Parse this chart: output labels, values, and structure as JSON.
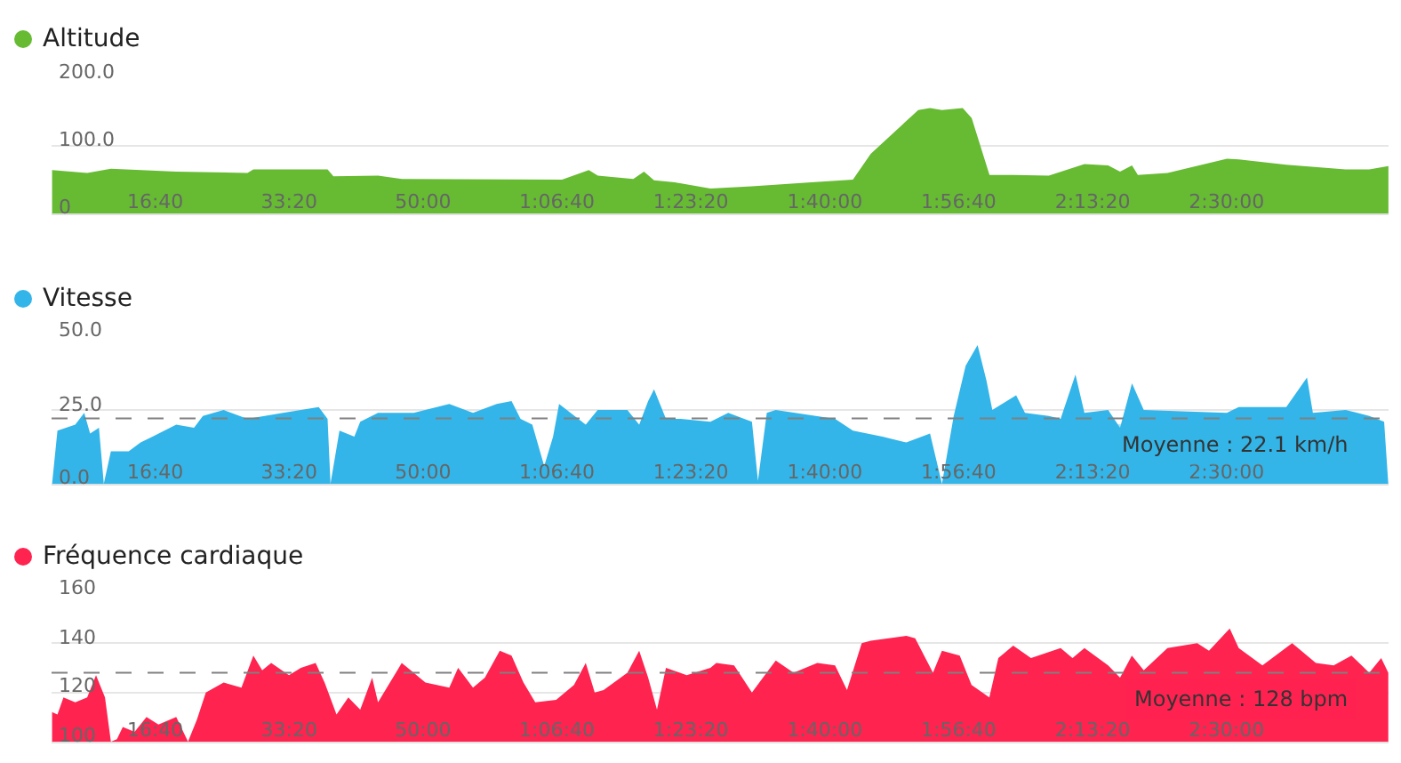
{
  "chart_data": [
    {
      "type": "area",
      "title": "Altitude",
      "x": [
        230,
        492,
        669,
        1157,
        1689,
        1733,
        2287,
        2331,
        2664,
        2842,
        4038,
        4238,
        4305,
        4570,
        4650,
        4725,
        4880,
        5146,
        5456,
        5900,
        6210,
        6343,
        6698,
        6786,
        6875,
        7030,
        7097,
        7230,
        7407,
        7673,
        7939,
        8116,
        8205,
        8294,
        8338,
        8560,
        9003,
        9092,
        9446,
        9889,
        10066,
        10209
      ],
      "series": [
        {
          "color": "#66bb33",
          "values": [
            64,
            60,
            66,
            62,
            60,
            65,
            65,
            55,
            56,
            51,
            50,
            64,
            56,
            51,
            62,
            49,
            46,
            37,
            40,
            46,
            50,
            88,
            153,
            156,
            153,
            156,
            141,
            57,
            57,
            56,
            73,
            71,
            62,
            71,
            57,
            60,
            81,
            80,
            72,
            65,
            65,
            70
          ]
        }
      ],
      "xlim": [
        226,
        10210
      ],
      "xticks": [
        {
          "value": 1000,
          "label": "16:40"
        },
        {
          "value": 2000,
          "label": "33:20"
        },
        {
          "value": 3000,
          "label": "50:00"
        },
        {
          "value": 4000,
          "label": "1:06:40"
        },
        {
          "value": 5000,
          "label": "1:23:20"
        },
        {
          "value": 6000,
          "label": "1:40:00"
        },
        {
          "value": 7000,
          "label": "1:56:40"
        },
        {
          "value": 8000,
          "label": "2:13:20"
        },
        {
          "value": 9000,
          "label": "2:30:00"
        }
      ],
      "ylim": [
        0,
        200
      ],
      "yticks": [
        0,
        {
          "value": 100,
          "label": "100.0"
        },
        {
          "value": 200,
          "label": "200.0"
        }
      ],
      "grid": "y"
    },
    {
      "type": "area",
      "title": "Vitesse",
      "x": [
        230,
        270,
        403,
        470,
        514,
        580,
        616,
        669,
        802,
        891,
        980,
        1157,
        1290,
        1356,
        1511,
        1689,
        1955,
        2221,
        2287,
        2309,
        2376,
        2487,
        2531,
        2664,
        2930,
        3196,
        3373,
        3550,
        3661,
        3728,
        3816,
        3905,
        3971,
        4016,
        4215,
        4304,
        4526,
        4614,
        4681,
        4725,
        4814,
        4925,
        5146,
        5279,
        5456,
        5501,
        5567,
        5634,
        6077,
        6210,
        6431,
        6609,
        6786,
        6875,
        6963,
        7052,
        7141,
        7207,
        7251,
        7429,
        7495,
        7673,
        7761,
        7872,
        7939,
        8116,
        8205,
        8294,
        8382,
        9002,
        9091,
        9446,
        9601,
        9645,
        9889,
        10066,
        10177,
        10208
      ],
      "series": [
        {
          "color": "#33b5e9",
          "values": [
            0,
            18,
            20,
            24,
            17,
            19,
            0,
            11,
            11,
            14,
            16,
            20,
            19,
            23,
            25,
            22,
            24,
            26,
            22,
            0,
            18,
            16,
            21,
            24,
            24,
            27,
            24,
            27,
            28,
            22,
            20,
            6,
            16,
            27,
            20,
            25,
            25,
            20,
            28,
            32,
            22,
            22,
            21,
            24,
            21,
            1,
            24,
            25,
            22,
            18,
            16,
            14,
            17,
            0,
            23,
            40,
            47,
            35,
            25,
            30,
            24,
            23,
            22,
            37,
            24,
            25,
            19,
            34,
            25,
            24,
            26,
            26,
            36,
            24,
            25,
            23,
            21,
            0
          ]
        }
      ],
      "xlim": [
        226,
        10210
      ],
      "xticks": [
        {
          "value": 1000,
          "label": "16:40"
        },
        {
          "value": 2000,
          "label": "33:20"
        },
        {
          "value": 3000,
          "label": "50:00"
        },
        {
          "value": 4000,
          "label": "1:06:40"
        },
        {
          "value": 5000,
          "label": "1:23:20"
        },
        {
          "value": 6000,
          "label": "1:40:00"
        },
        {
          "value": 7000,
          "label": "1:56:40"
        },
        {
          "value": 8000,
          "label": "2:13:20"
        },
        {
          "value": 9000,
          "label": "2:30:00"
        }
      ],
      "ylim": [
        0,
        50
      ],
      "yticks": [
        {
          "value": 0,
          "label": "0.0"
        },
        {
          "value": 25,
          "label": "25.0"
        },
        {
          "value": 50,
          "label": "50.0"
        }
      ],
      "grid": "y",
      "ref_lines": [
        {
          "axis": "y",
          "value": 22.1,
          "label": "Moyenne : 22.1 km/h",
          "color": "#808080",
          "line_style": "dashed"
        }
      ]
    },
    {
      "type": "area",
      "title": "Fréquence cardiaque",
      "x": [
        230,
        270,
        315,
        403,
        492,
        558,
        625,
        669,
        714,
        758,
        846,
        935,
        1024,
        1157,
        1245,
        1312,
        1378,
        1511,
        1644,
        1733,
        1799,
        1866,
        1999,
        2088,
        2198,
        2265,
        2354,
        2442,
        2531,
        2620,
        2664,
        2753,
        2841,
        2930,
        3018,
        3196,
        3262,
        3373,
        3462,
        3573,
        3661,
        3750,
        3838,
        3994,
        4127,
        4215,
        4282,
        4348,
        4526,
        4614,
        4681,
        4747,
        4814,
        4969,
        5146,
        5190,
        5323,
        5456,
        5634,
        5767,
        5944,
        6077,
        6166,
        6276,
        6343,
        6609,
        6675,
        6808,
        6875,
        7008,
        7096,
        7229,
        7296,
        7407,
        7540,
        7761,
        7850,
        7939,
        8116,
        8205,
        8293,
        8382,
        8559,
        8781,
        8869,
        9024,
        9091,
        9268,
        9490,
        9667,
        9800,
        9933,
        10066,
        10155,
        10208
      ],
      "series": [
        {
          "color": "#ff2350",
          "values": [
            112,
            111,
            118,
            116,
            118,
            127,
            118,
            100,
            101,
            106,
            104,
            110,
            107,
            110,
            100,
            109,
            120,
            124,
            122,
            135,
            129,
            132,
            127,
            130,
            132,
            124,
            111,
            118,
            113,
            126,
            116,
            124,
            132,
            128,
            124,
            122,
            130,
            122,
            126,
            137,
            135,
            124,
            116,
            117,
            123,
            132,
            120,
            121,
            128,
            137,
            126,
            113,
            130,
            127,
            130,
            132,
            131,
            120,
            133,
            128,
            132,
            131,
            121,
            140,
            141,
            143,
            142,
            128,
            137,
            135,
            123,
            118,
            134,
            139,
            134,
            138,
            134,
            138,
            131,
            126,
            135,
            129,
            138,
            140,
            137,
            146,
            138,
            131,
            140,
            132,
            131,
            135,
            128,
            134,
            128
          ]
        }
      ],
      "xlim": [
        226,
        10210
      ],
      "xticks": [
        {
          "value": 1000,
          "label": "16:40"
        },
        {
          "value": 2000,
          "label": "33:20"
        },
        {
          "value": 3000,
          "label": "50:00"
        },
        {
          "value": 4000,
          "label": "1:06:40"
        },
        {
          "value": 5000,
          "label": "1:23:20"
        },
        {
          "value": 6000,
          "label": "1:40:00"
        },
        {
          "value": 7000,
          "label": "1:56:40"
        },
        {
          "value": 8000,
          "label": "2:13:20"
        },
        {
          "value": 9000,
          "label": "2:30:00"
        }
      ],
      "ylim": [
        100,
        160
      ],
      "yticks": [
        100,
        120,
        140,
        160
      ],
      "grid": "y",
      "ref_lines": [
        {
          "axis": "y",
          "value": 128,
          "label": "Moyenne : 128 bpm",
          "color": "#808080",
          "line_style": "dashed"
        }
      ]
    }
  ]
}
